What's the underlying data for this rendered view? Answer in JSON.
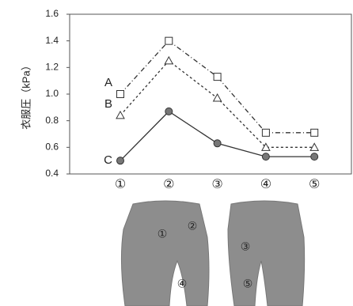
{
  "chart_data": {
    "type": "line",
    "y_label": "衣服圧（kPa）",
    "categories": [
      "①",
      "②",
      "③",
      "④",
      "⑤"
    ],
    "ylim": [
      0.4,
      1.6
    ],
    "yticks": [
      0.4,
      0.6,
      0.8,
      {
        "value": 1,
        "label": "1.0"
      },
      1.2,
      1.4,
      1.6
    ],
    "series": [
      {
        "name": "A",
        "color": "#333333",
        "marker": "square",
        "dash": "6 3 1 3",
        "values": [
          1.0,
          1.4,
          1.13,
          0.71,
          0.71
        ]
      },
      {
        "name": "B",
        "color": "#333333",
        "marker": "triangle",
        "dash": "3 3",
        "values": [
          0.84,
          1.25,
          0.97,
          0.6,
          0.6
        ]
      },
      {
        "name": "C",
        "color": "#333333",
        "marker": "circle",
        "dash": "none",
        "values": [
          0.5,
          0.87,
          0.63,
          0.53,
          0.53
        ]
      }
    ]
  },
  "illustration": {
    "front_labels": [
      "①",
      "②",
      "④"
    ],
    "back_labels": [
      "③",
      "⑤"
    ]
  }
}
